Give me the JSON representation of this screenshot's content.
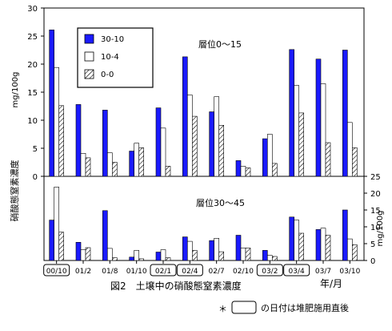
{
  "chart_data": [
    {
      "type": "bar",
      "panel": "top",
      "annotation": "層位0～15",
      "ylabel": "mg/100g",
      "ylim": [
        0,
        30
      ],
      "yticks": [
        0,
        5,
        10,
        15,
        20,
        25,
        30
      ],
      "categories": [
        "00/10",
        "01/2",
        "01/8",
        "01/10",
        "02/1",
        "02/4",
        "02/7",
        "02/10",
        "03/2",
        "03/4",
        "03/7",
        "03/10"
      ],
      "series": [
        {
          "name": "30-10",
          "color": "#1a1aff",
          "values": [
            26.1,
            12.8,
            11.8,
            4.5,
            12.2,
            21.3,
            11.5,
            2.8,
            6.7,
            22.6,
            20.9,
            22.5
          ]
        },
        {
          "name": "10-4",
          "color": "#ffffff",
          "values": [
            19.4,
            4.1,
            4.2,
            5.9,
            8.6,
            14.5,
            14.2,
            1.8,
            7.5,
            16.2,
            16.5,
            9.6
          ]
        },
        {
          "name": "0-0",
          "color": "hatch",
          "values": [
            12.6,
            3.3,
            2.5,
            5.1,
            1.8,
            10.7,
            9.1,
            1.5,
            2.3,
            11.3,
            6.0,
            5.1
          ]
        }
      ]
    },
    {
      "type": "bar",
      "panel": "bottom",
      "annotation": "層位30～45",
      "ylabel": "mg/100g",
      "ylim": [
        0,
        25
      ],
      "yticks": [
        0,
        5,
        10,
        15,
        20,
        25
      ],
      "categories": [
        "00/10",
        "01/2",
        "01/8",
        "01/10",
        "02/1",
        "02/4",
        "02/7",
        "02/10",
        "03/2",
        "03/4",
        "03/7",
        "03/10"
      ],
      "series": [
        {
          "name": "30-10",
          "color": "#1a1aff",
          "values": [
            12.0,
            5.4,
            14.8,
            1.0,
            2.5,
            7.0,
            5.9,
            7.5,
            3.0,
            12.9,
            9.2,
            15.0
          ]
        },
        {
          "name": "10-4",
          "color": "#ffffff",
          "values": [
            21.8,
            3.2,
            3.6,
            3.0,
            3.2,
            5.7,
            6.6,
            3.7,
            1.5,
            12.0,
            9.6,
            6.4
          ]
        },
        {
          "name": "0-0",
          "color": "hatch",
          "values": [
            8.4,
            3.8,
            0.8,
            0.5,
            0.8,
            3.0,
            2.6,
            3.7,
            1.2,
            8.1,
            7.5,
            4.7
          ]
        }
      ]
    }
  ],
  "labels": {
    "ylabel_left": "mg/100g",
    "ylabel_right": "mg/100g",
    "side_title": "硝酸態窒素濃度",
    "caption": "図2　土壌中の硝酸態窒素濃度",
    "xunit": "年/月",
    "footnote_prefix": "＊",
    "footnote_text": "の日付は堆肥施用直後"
  },
  "boxed_dates": [
    "00/10",
    "02/1",
    "02/4",
    "03/2",
    "03/4"
  ]
}
